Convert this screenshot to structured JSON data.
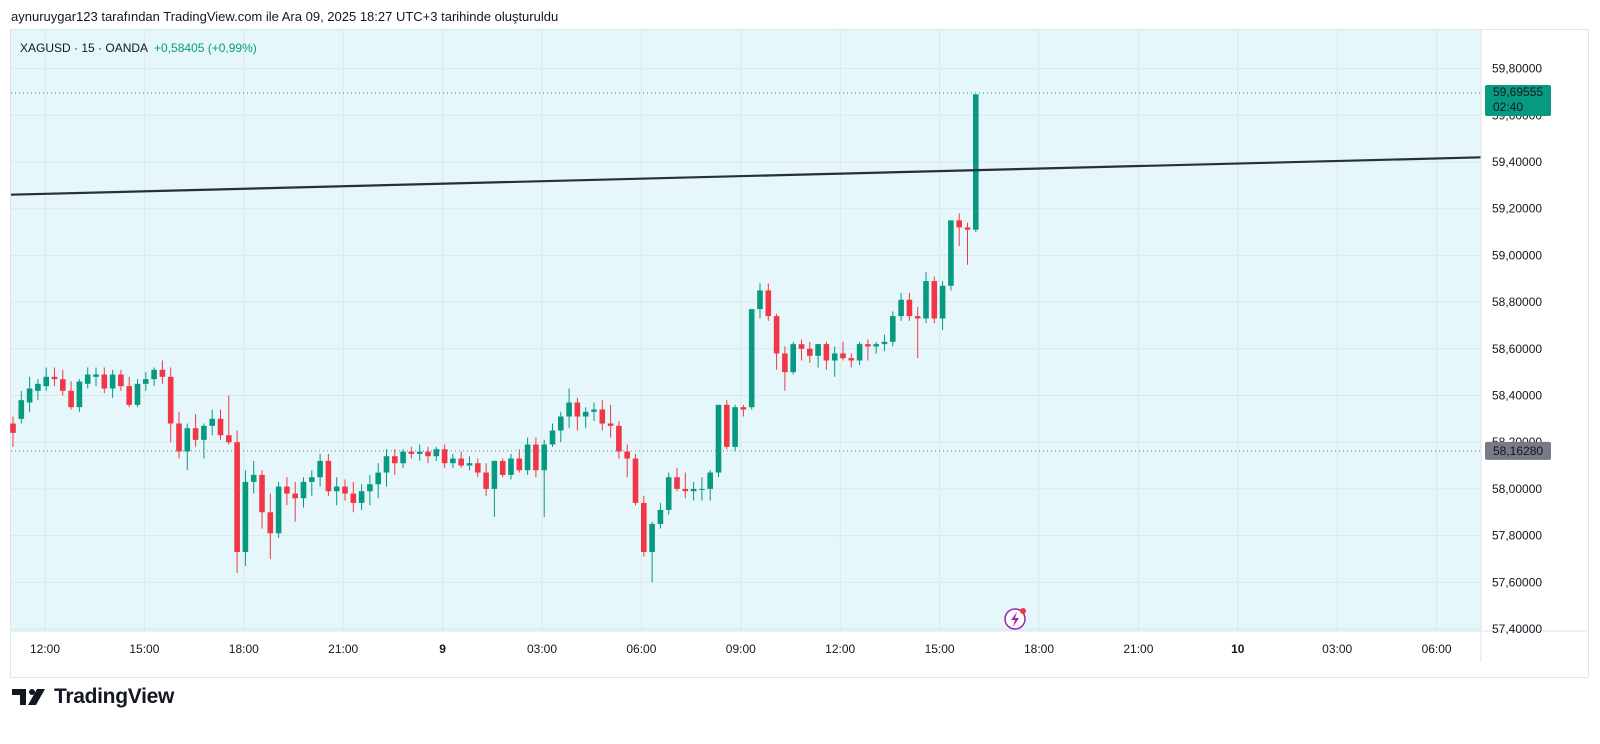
{
  "attribution": "aynuruygar123 tarafından TradingView.com ile Ara 09, 2025 18:27 UTC+3 tarihinde oluşturuldu",
  "symbol": {
    "name": "XAGUSD · 15 · OANDA",
    "change": "+0,58405 (+0,99%)"
  },
  "brand": {
    "name": "TradingView"
  },
  "colors": {
    "background": "#e5f7fa",
    "up": "#089981",
    "down": "#f23645",
    "trendline": "#2a2e39",
    "grid": "#d8e9ed"
  },
  "price_axis": {
    "ticks": [
      "59,80000",
      "59,60000",
      "59,40000",
      "59,20000",
      "59,00000",
      "58,80000",
      "58,60000",
      "58,40000",
      "58,20000",
      "58,00000",
      "57,80000",
      "57,60000",
      "57,40000"
    ],
    "last_price_label": "59,69555",
    "countdown_label": "02:40",
    "prev_close_label": "58,16280"
  },
  "time_axis": {
    "labels": [
      {
        "text": "12:00",
        "bold": false
      },
      {
        "text": "15:00",
        "bold": false
      },
      {
        "text": "18:00",
        "bold": false
      },
      {
        "text": "21:00",
        "bold": false
      },
      {
        "text": "9",
        "bold": true
      },
      {
        "text": "03:00",
        "bold": false
      },
      {
        "text": "06:00",
        "bold": false
      },
      {
        "text": "09:00",
        "bold": false
      },
      {
        "text": "12:00",
        "bold": false
      },
      {
        "text": "15:00",
        "bold": false
      },
      {
        "text": "18:00",
        "bold": false
      },
      {
        "text": "21:00",
        "bold": false
      },
      {
        "text": "10",
        "bold": true
      },
      {
        "text": "03:00",
        "bold": false
      },
      {
        "text": "06:00",
        "bold": false
      }
    ]
  },
  "chart_data": {
    "type": "candlestick",
    "symbol": "XAGUSD",
    "interval": "15",
    "ylim": [
      57.4,
      59.9
    ],
    "grid": true,
    "trendline": {
      "from": [
        "12:00",
        59.26
      ],
      "to": [
        "10 07:00",
        59.42
      ]
    },
    "last_price": 59.69555,
    "prev_close": 58.1628,
    "candles": [
      [
        58.28,
        58.31,
        58.18,
        58.24
      ],
      [
        58.3,
        58.42,
        58.28,
        58.38
      ],
      [
        58.37,
        58.48,
        58.33,
        58.43
      ],
      [
        58.42,
        58.47,
        58.38,
        58.45
      ],
      [
        58.44,
        58.52,
        58.42,
        58.48
      ],
      [
        58.48,
        58.52,
        58.44,
        58.47
      ],
      [
        58.47,
        58.51,
        58.4,
        58.42
      ],
      [
        58.42,
        58.46,
        58.34,
        58.35
      ],
      [
        58.35,
        58.47,
        58.33,
        58.46
      ],
      [
        58.45,
        58.52,
        58.43,
        58.49
      ],
      [
        58.48,
        58.52,
        58.44,
        58.49
      ],
      [
        58.49,
        58.52,
        58.41,
        58.43
      ],
      [
        58.43,
        58.51,
        58.39,
        58.49
      ],
      [
        58.49,
        58.51,
        58.42,
        58.44
      ],
      [
        58.44,
        58.48,
        58.35,
        58.36
      ],
      [
        58.36,
        58.47,
        58.35,
        58.45
      ],
      [
        58.45,
        58.5,
        58.42,
        58.47
      ],
      [
        58.47,
        58.52,
        58.44,
        58.51
      ],
      [
        58.51,
        58.55,
        58.45,
        58.48
      ],
      [
        58.48,
        58.52,
        58.2,
        58.28
      ],
      [
        58.28,
        58.33,
        58.13,
        58.16
      ],
      [
        58.16,
        58.28,
        58.08,
        58.26
      ],
      [
        58.26,
        58.32,
        58.18,
        58.21
      ],
      [
        58.21,
        58.28,
        58.13,
        58.27
      ],
      [
        58.27,
        58.34,
        58.23,
        58.3
      ],
      [
        58.3,
        58.34,
        58.21,
        58.23
      ],
      [
        58.23,
        58.4,
        58.19,
        58.2
      ],
      [
        58.2,
        58.25,
        57.64,
        57.73
      ],
      [
        57.73,
        58.08,
        57.67,
        58.03
      ],
      [
        58.03,
        58.12,
        57.98,
        58.06
      ],
      [
        58.06,
        58.08,
        57.83,
        57.9
      ],
      [
        57.9,
        57.98,
        57.7,
        57.81
      ],
      [
        57.81,
        58.03,
        57.79,
        58.01
      ],
      [
        58.01,
        58.05,
        57.93,
        57.98
      ],
      [
        57.98,
        58.03,
        57.86,
        57.96
      ],
      [
        57.96,
        58.05,
        57.92,
        58.03
      ],
      [
        58.03,
        58.08,
        57.97,
        58.05
      ],
      [
        58.05,
        58.15,
        58.01,
        58.12
      ],
      [
        58.12,
        58.15,
        57.97,
        57.99
      ],
      [
        57.99,
        58.05,
        57.93,
        58.01
      ],
      [
        58.01,
        58.04,
        57.95,
        57.98
      ],
      [
        57.98,
        58.03,
        57.9,
        57.94
      ],
      [
        57.94,
        58.02,
        57.91,
        57.99
      ],
      [
        57.99,
        58.06,
        57.93,
        58.02
      ],
      [
        58.02,
        58.11,
        57.96,
        58.07
      ],
      [
        58.07,
        58.17,
        58.01,
        58.14
      ],
      [
        58.14,
        58.17,
        58.06,
        58.11
      ],
      [
        58.11,
        58.17,
        58.09,
        58.16
      ],
      [
        58.16,
        58.18,
        58.13,
        58.15
      ],
      [
        58.15,
        58.19,
        58.12,
        58.16
      ],
      [
        58.16,
        58.18,
        58.11,
        58.14
      ],
      [
        58.14,
        58.18,
        58.12,
        58.17
      ],
      [
        58.17,
        58.19,
        58.09,
        58.11
      ],
      [
        58.11,
        58.15,
        58.09,
        58.13
      ],
      [
        58.13,
        58.16,
        58.09,
        58.1
      ],
      [
        58.1,
        58.14,
        58.08,
        58.11
      ],
      [
        58.11,
        58.13,
        58.05,
        58.07
      ],
      [
        58.07,
        58.11,
        57.97,
        58.0
      ],
      [
        58.0,
        58.12,
        57.88,
        58.12
      ],
      [
        58.12,
        58.13,
        58.05,
        58.06
      ],
      [
        58.06,
        58.15,
        58.04,
        58.13
      ],
      [
        58.13,
        58.17,
        58.07,
        58.08
      ],
      [
        58.08,
        58.22,
        58.06,
        58.19
      ],
      [
        58.19,
        58.22,
        58.05,
        58.08
      ],
      [
        58.08,
        58.21,
        57.88,
        58.19
      ],
      [
        58.19,
        58.28,
        58.18,
        58.25
      ],
      [
        58.25,
        58.33,
        58.2,
        58.31
      ],
      [
        58.31,
        58.43,
        58.26,
        58.37
      ],
      [
        58.37,
        58.39,
        58.25,
        58.31
      ],
      [
        58.31,
        58.35,
        58.26,
        58.33
      ],
      [
        58.33,
        58.37,
        58.29,
        58.34
      ],
      [
        58.34,
        58.38,
        58.25,
        58.28
      ],
      [
        58.28,
        58.36,
        58.22,
        58.27
      ],
      [
        58.27,
        58.29,
        58.13,
        58.16
      ],
      [
        58.16,
        58.19,
        58.05,
        58.13
      ],
      [
        58.13,
        58.15,
        57.93,
        57.94
      ],
      [
        57.94,
        57.97,
        57.71,
        57.73
      ],
      [
        57.73,
        57.86,
        57.6,
        57.85
      ],
      [
        57.85,
        57.94,
        57.83,
        57.91
      ],
      [
        57.91,
        58.07,
        57.89,
        58.05
      ],
      [
        58.05,
        58.09,
        57.99,
        58.0
      ],
      [
        58.0,
        58.07,
        57.96,
        57.99
      ],
      [
        57.99,
        58.03,
        57.95,
        58.0
      ],
      [
        58.0,
        58.05,
        57.95,
        58.0
      ],
      [
        58.0,
        58.08,
        57.95,
        58.07
      ],
      [
        58.07,
        58.36,
        58.05,
        58.36
      ],
      [
        58.36,
        58.38,
        58.17,
        58.18
      ],
      [
        58.18,
        58.36,
        58.16,
        58.35
      ],
      [
        58.35,
        58.36,
        58.31,
        58.34
      ],
      [
        58.35,
        58.77,
        58.34,
        58.77
      ],
      [
        58.77,
        58.88,
        58.73,
        58.85
      ],
      [
        58.85,
        58.88,
        58.72,
        58.74
      ],
      [
        58.74,
        58.75,
        58.51,
        58.58
      ],
      [
        58.58,
        58.61,
        58.42,
        58.5
      ],
      [
        58.5,
        58.63,
        58.49,
        58.62
      ],
      [
        58.62,
        58.64,
        58.55,
        58.6
      ],
      [
        58.6,
        58.63,
        58.54,
        58.57
      ],
      [
        58.57,
        58.62,
        58.52,
        58.62
      ],
      [
        58.62,
        58.63,
        58.51,
        58.55
      ],
      [
        58.55,
        58.61,
        58.48,
        58.58
      ],
      [
        58.58,
        58.63,
        58.55,
        58.56
      ],
      [
        58.56,
        58.58,
        58.52,
        58.55
      ],
      [
        58.55,
        58.63,
        58.53,
        58.62
      ],
      [
        58.62,
        58.64,
        58.55,
        58.61
      ],
      [
        58.61,
        58.63,
        58.58,
        58.62
      ],
      [
        58.62,
        58.66,
        58.59,
        58.63
      ],
      [
        58.63,
        58.76,
        58.61,
        58.74
      ],
      [
        58.74,
        58.84,
        58.72,
        58.81
      ],
      [
        58.81,
        58.84,
        58.72,
        58.74
      ],
      [
        58.74,
        58.78,
        58.56,
        58.73
      ],
      [
        58.73,
        58.93,
        58.71,
        58.89
      ],
      [
        58.89,
        58.91,
        58.71,
        58.73
      ],
      [
        58.73,
        58.89,
        58.68,
        58.87
      ],
      [
        58.87,
        59.15,
        58.85,
        59.15
      ],
      [
        59.15,
        59.18,
        59.04,
        59.12
      ],
      [
        59.12,
        59.14,
        58.96,
        59.11
      ],
      [
        59.11,
        59.69,
        59.1,
        59.69
      ]
    ]
  }
}
